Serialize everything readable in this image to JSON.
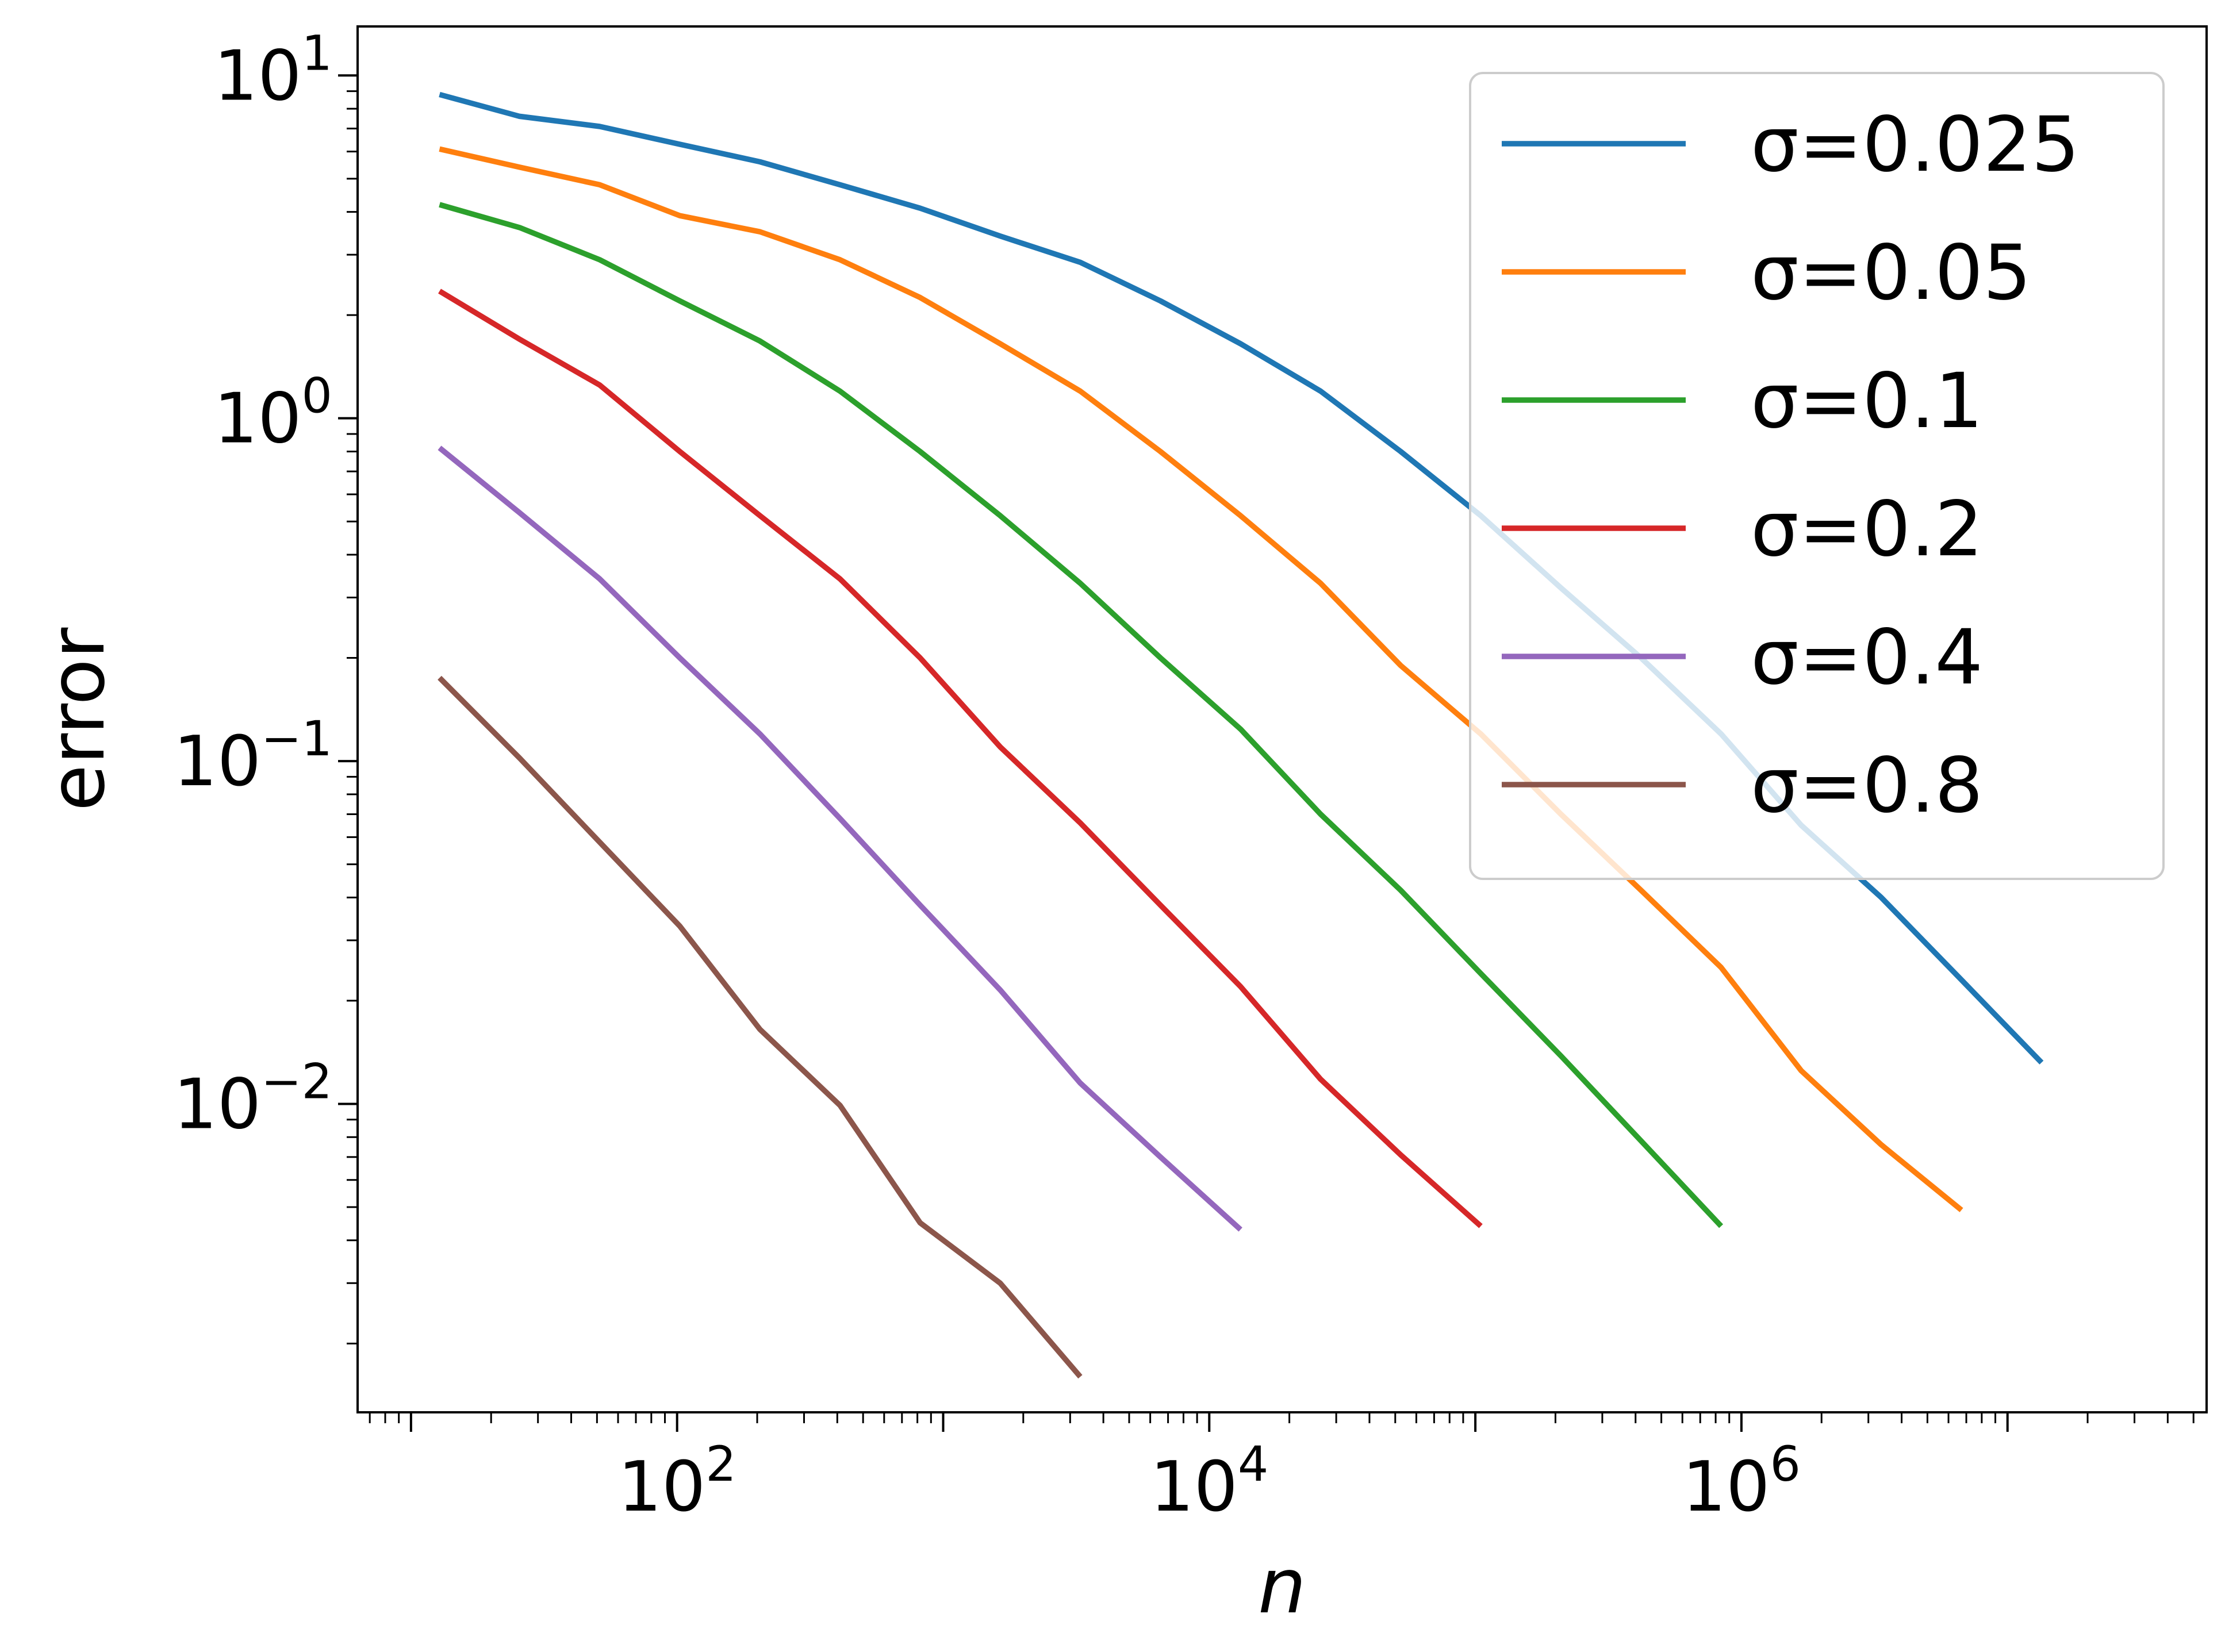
{
  "chart_data": {
    "type": "line",
    "xlabel": "n",
    "ylabel": "error",
    "xscale": "log",
    "yscale": "log",
    "xlim": [
      6.3,
      56000000
    ],
    "ylim": [
      0.00126,
      13.9
    ],
    "grid": false,
    "legend_position": "top-right",
    "x_ticks": [
      {
        "value": 100,
        "base": "10",
        "exp": "2"
      },
      {
        "value": 10000,
        "base": "10",
        "exp": "4"
      },
      {
        "value": 1000000,
        "base": "10",
        "exp": "6"
      }
    ],
    "y_ticks": [
      {
        "value": 0.01,
        "base": "10",
        "exp": "−2"
      },
      {
        "value": 0.1,
        "base": "10",
        "exp": "−1"
      },
      {
        "value": 1,
        "base": "10",
        "exp": "0"
      },
      {
        "value": 10,
        "base": "10",
        "exp": "1"
      }
    ],
    "series": [
      {
        "name": "σ=0.025",
        "color": "#1f77b4",
        "x": [
          12.8,
          25.6,
          51.2,
          102.4,
          204.8,
          409.6,
          819.2,
          1638.4,
          3276.8,
          6553.6,
          13107.2,
          26214.4,
          52428.8,
          104857.6,
          209715.2,
          419430.4,
          838860.8,
          1677721.6,
          3355443.2,
          6710886.4,
          13421772.8
        ],
        "y": [
          8.8,
          7.6,
          7.1,
          6.3,
          5.6,
          4.8,
          4.1,
          3.4,
          2.85,
          2.2,
          1.65,
          1.2,
          0.8,
          0.52,
          0.32,
          0.2,
          0.12,
          0.065,
          0.04,
          0.023,
          0.0132
        ]
      },
      {
        "name": "σ=0.05",
        "color": "#ff7f0e",
        "x": [
          12.8,
          25.6,
          51.2,
          102.4,
          204.8,
          409.6,
          819.2,
          1638.4,
          3276.8,
          6553.6,
          13107.2,
          26214.4,
          52428.8,
          104857.6,
          209715.2,
          419430.4,
          838860.8,
          1677721.6,
          3355443.2,
          6710886.4
        ],
        "y": [
          6.1,
          5.4,
          4.8,
          3.9,
          3.5,
          2.9,
          2.25,
          1.65,
          1.2,
          0.8,
          0.52,
          0.33,
          0.19,
          0.12,
          0.07,
          0.042,
          0.025,
          0.0125,
          0.0076,
          0.0049
        ]
      },
      {
        "name": "σ=0.1",
        "color": "#2ca02c",
        "x": [
          12.8,
          25.6,
          51.2,
          102.4,
          204.8,
          409.6,
          819.2,
          1638.4,
          3276.8,
          6553.6,
          13107.2,
          26214.4,
          52428.8,
          104857.6,
          209715.2,
          419430.4,
          838860.8
        ],
        "y": [
          4.2,
          3.6,
          2.9,
          2.2,
          1.68,
          1.2,
          0.8,
          0.52,
          0.33,
          0.2,
          0.124,
          0.07,
          0.042,
          0.024,
          0.0138,
          0.0078,
          0.0044
        ]
      },
      {
        "name": "σ=0.2",
        "color": "#d62728",
        "x": [
          12.8,
          25.6,
          51.2,
          102.4,
          204.8,
          409.6,
          819.2,
          1638.4,
          3276.8,
          6553.6,
          13107.2,
          26214.4,
          52428.8,
          104857.6
        ],
        "y": [
          2.35,
          1.7,
          1.25,
          0.8,
          0.52,
          0.34,
          0.2,
          0.11,
          0.066,
          0.038,
          0.022,
          0.0118,
          0.0071,
          0.0044
        ]
      },
      {
        "name": "σ=0.4",
        "color": "#9467bd",
        "x": [
          12.8,
          25.6,
          51.2,
          102.4,
          204.8,
          409.6,
          819.2,
          1638.4,
          3276.8,
          6553.6,
          13107.2
        ],
        "y": [
          0.82,
          0.53,
          0.34,
          0.2,
          0.12,
          0.068,
          0.038,
          0.0215,
          0.0115,
          0.007,
          0.0043
        ]
      },
      {
        "name": "σ=0.8",
        "color": "#8c564b",
        "x": [
          12.8,
          25.6,
          51.2,
          102.4,
          204.8,
          409.6,
          819.2,
          1638.4,
          3276.8
        ],
        "y": [
          0.175,
          0.102,
          0.058,
          0.033,
          0.0165,
          0.0099,
          0.0045,
          0.003,
          0.0016
        ]
      }
    ]
  }
}
